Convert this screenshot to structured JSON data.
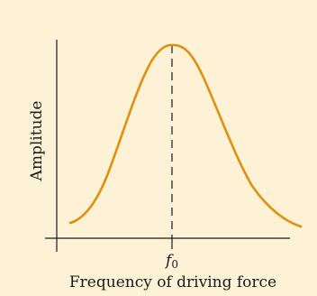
{
  "diagram": {
    "type": "resonance-curve",
    "background_color": "#fdf1d6",
    "curve_color": "#e0900a",
    "axis_color": "#1a1a1a",
    "y_axis_label": "Amplitude",
    "x_axis_label": "Frequency of driving force",
    "peak_marker_label": "f",
    "peak_marker_subscript": "0",
    "peak_marker_line_style": "dashed"
  }
}
